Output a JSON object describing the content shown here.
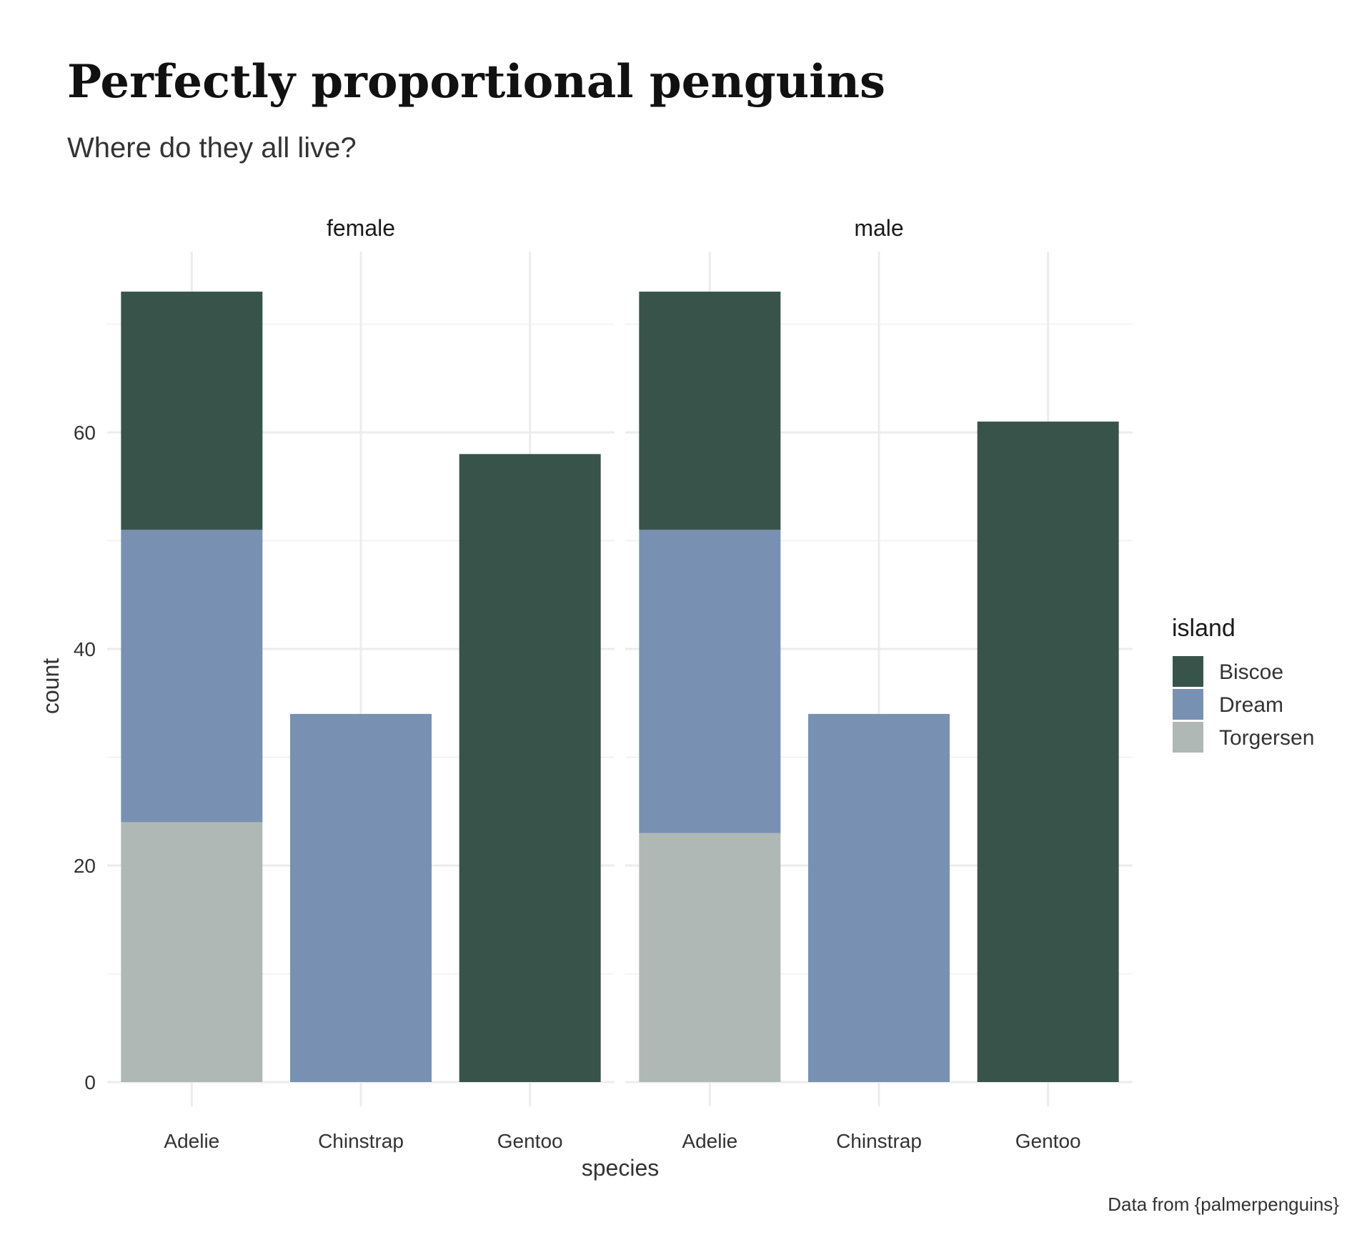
{
  "chart_data": {
    "type": "bar",
    "stacked": true,
    "title": "Perfectly proportional penguins",
    "subtitle": "Where do they all live?",
    "caption": "Data from {palmerpenguins}",
    "xlabel": "species",
    "ylabel": "count",
    "ylim": [
      0,
      77
    ],
    "yticks": [
      0,
      20,
      40,
      60
    ],
    "grid": true,
    "legend": {
      "title": "island",
      "position": "right",
      "entries": [
        "Biscoe",
        "Dream",
        "Torgersen"
      ]
    },
    "colors": {
      "Biscoe": "#38534a",
      "Dream": "#7891b2",
      "Torgersen": "#afb8b4"
    },
    "categories": [
      "Adelie",
      "Chinstrap",
      "Gentoo"
    ],
    "facets": [
      {
        "label": "female",
        "series": [
          {
            "name": "Torgersen",
            "values": [
              24,
              0,
              0
            ]
          },
          {
            "name": "Dream",
            "values": [
              27,
              34,
              0
            ]
          },
          {
            "name": "Biscoe",
            "values": [
              22,
              0,
              58
            ]
          }
        ]
      },
      {
        "label": "male",
        "series": [
          {
            "name": "Torgersen",
            "values": [
              23,
              0,
              0
            ]
          },
          {
            "name": "Dream",
            "values": [
              28,
              34,
              0
            ]
          },
          {
            "name": "Biscoe",
            "values": [
              22,
              0,
              61
            ]
          }
        ]
      }
    ]
  }
}
